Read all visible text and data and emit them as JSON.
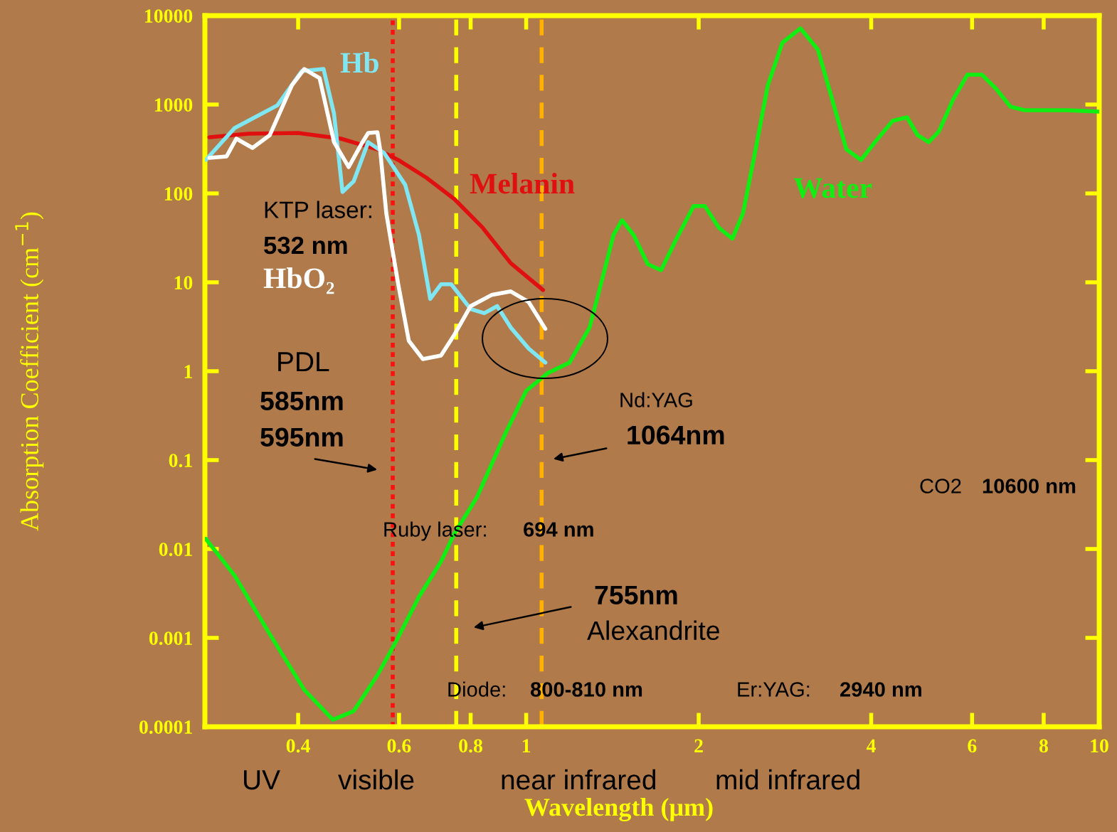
{
  "chart_data": {
    "type": "line",
    "xlabel": "Wavelength (μm)",
    "ylabel": "Absorption Coefficient (cm$^{−1}$)",
    "log": "xy",
    "xlim": [
      0.275,
      10
    ],
    "ylim": [
      0.0001,
      10000
    ],
    "xticks": [
      0.4,
      0.6,
      0.8,
      1,
      2,
      4,
      6,
      8,
      10
    ],
    "yticks": [
      0.0001,
      0.001,
      0.01,
      0.1,
      1,
      10,
      100,
      1000,
      10000
    ],
    "grid": false,
    "legend": false,
    "marker": "none",
    "line_style": "solid",
    "series": [
      {
        "name": "Water",
        "color": "#11ee11",
        "x": [
          0.276,
          0.31,
          0.357,
          0.41,
          0.46,
          0.5,
          0.55,
          0.59,
          0.65,
          0.71,
          0.75,
          0.82,
          0.92,
          1.0,
          1.09,
          1.19,
          1.29,
          1.37,
          1.42,
          1.47,
          1.54,
          1.63,
          1.72,
          1.82,
          1.96,
          2.05,
          2.17,
          2.29,
          2.39,
          2.5,
          2.64,
          2.8,
          3.01,
          3.23,
          3.42,
          3.62,
          3.84,
          4.06,
          4.36,
          4.62,
          4.82,
          5.04,
          5.25,
          5.56,
          5.89,
          6.24,
          6.61,
          7.0,
          7.41,
          8.79,
          10
        ],
        "values": [
          0.013,
          0.005,
          0.0011,
          0.00026,
          0.00012,
          0.00015,
          0.00038,
          0.00086,
          0.0029,
          0.0072,
          0.015,
          0.038,
          0.2,
          0.6,
          0.95,
          1.25,
          3.1,
          13.7,
          34,
          50,
          34,
          16,
          13.7,
          29,
          72,
          72,
          41,
          31,
          60,
          260,
          1640,
          4970,
          7200,
          4130,
          1140,
          313,
          238,
          377,
          655,
          718,
          453,
          377,
          497,
          1140,
          2170,
          2170,
          1500,
          946,
          863,
          863,
          832
        ]
      },
      {
        "name": "Melanin",
        "color": "#e01010",
        "x": [
          0.28,
          0.328,
          0.4,
          0.475,
          0.55,
          0.598,
          0.67,
          0.75,
          0.84,
          0.94,
          1.07
        ],
        "values": [
          429,
          470,
          479,
          413,
          313,
          238,
          150,
          86,
          41,
          16.4,
          8.2
        ]
      },
      {
        "name": "Hb",
        "color": "#80e6f2",
        "x": [
          0.276,
          0.31,
          0.368,
          0.406,
          0.443,
          0.462,
          0.478,
          0.5,
          0.53,
          0.565,
          0.615,
          0.65,
          0.68,
          0.71,
          0.74,
          0.8,
          0.845,
          0.89,
          0.94,
          1.01,
          1.08
        ],
        "values": [
          238,
          545,
          980,
          2380,
          2510,
          787,
          104,
          137,
          377,
          286,
          125,
          34,
          6.5,
          9.5,
          9.5,
          5.0,
          4.5,
          5.4,
          3.1,
          1.8,
          1.25
        ]
      },
      {
        "name": "HbO₂",
        "color": "#ffffff",
        "x": [
          0.28,
          0.3,
          0.312,
          0.333,
          0.357,
          0.39,
          0.41,
          0.436,
          0.462,
          0.49,
          0.518,
          0.53,
          0.55,
          0.556,
          0.57,
          0.598,
          0.624,
          0.66,
          0.71,
          0.75,
          0.8,
          0.87,
          0.94,
          1.01,
          1.08
        ],
        "values": [
          251,
          261,
          413,
          325,
          453,
          1640,
          2510,
          1980,
          377,
          198,
          377,
          479,
          488,
          313,
          60,
          9.5,
          2.2,
          1.37,
          1.5,
          2.6,
          5.4,
          7.2,
          7.9,
          6.0,
          3.0
        ]
      }
    ],
    "ref_lines": [
      {
        "axis": "x",
        "value": 0.585,
        "color": "#ff1010",
        "line_style": "dotted"
      },
      {
        "axis": "x",
        "value": 0.755,
        "color": "#ffff00",
        "line_style": "dashed"
      },
      {
        "axis": "x",
        "value": 1.064,
        "color": "#ffb000",
        "line_style": "dashed"
      }
    ],
    "annotations": [
      "KTP laser:",
      "532 nm",
      "PDL",
      "585nm",
      "595nm",
      "Nd:YAG",
      "1064nm",
      "Ruby laser:",
      "694 nm",
      "755nm",
      "Alexandrite",
      "Diode:",
      "800-810 nm",
      "Er:YAG:",
      "2940 nm",
      "CO2",
      "10600 nm",
      "UV",
      "visible",
      "near infrared",
      "mid infrared"
    ]
  }
}
